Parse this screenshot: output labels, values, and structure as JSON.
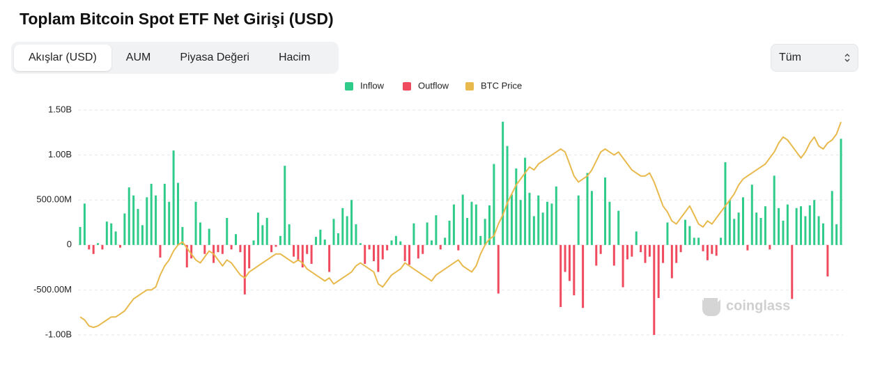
{
  "ui": {
    "title": "Toplam Bitcoin Spot ETF Net Girişi (USD)",
    "tabs": [
      "Akışlar (USD)",
      "AUM",
      "Piyasa Değeri",
      "Hacim"
    ],
    "select": "Tüm",
    "watermark": "coinglass"
  },
  "chart_data": {
    "type": "bar",
    "ylim": [
      -1000000000,
      1500000000
    ],
    "yticks": [
      {
        "value": -1000000000,
        "label": "-1.00B"
      },
      {
        "value": -500000000,
        "label": "-500.00M"
      },
      0,
      {
        "value": 500000000,
        "label": "500.00M"
      },
      {
        "value": 1000000000,
        "label": "1.00B"
      },
      {
        "value": 1500000000,
        "label": "1.50B"
      }
    ],
    "y2lim": [
      35000,
      110000
    ],
    "grid": true,
    "legend": "top",
    "series": [
      {
        "name": "Inflow",
        "color": "#2fcb8a",
        "values": [
          200000000.0,
          460000000.0,
          null,
          null,
          20000000.0,
          null,
          260000000.0,
          240000000.0,
          150000000.0,
          null,
          350000000.0,
          640000000.0,
          550000000.0,
          400000000.0,
          220000000.0,
          530000000.0,
          680000000.0,
          550000000.0,
          null,
          680000000.0,
          480000000.0,
          1050000000.0,
          690000000.0,
          200000000.0,
          null,
          null,
          480000000.0,
          250000000.0,
          null,
          180000000.0,
          null,
          null,
          null,
          300000000.0,
          null,
          120000000.0,
          null,
          null,
          null,
          50000000.0,
          360000000.0,
          220000000.0,
          300000000.0,
          null,
          null,
          100000000.0,
          880000000.0,
          230000000.0,
          null,
          null,
          null,
          null,
          null,
          90000000.0,
          170000000.0,
          60000000.0,
          null,
          290000000.0,
          130000000.0,
          410000000.0,
          320000000.0,
          500000000.0,
          230000000.0,
          20000000.0,
          null,
          null,
          null,
          null,
          null,
          null,
          50000000.0,
          100000000.0,
          40000000.0,
          null,
          null,
          240000000.0,
          null,
          null,
          250000000.0,
          50000000.0,
          330000000.0,
          null,
          80000000.0,
          270000000.0,
          450000000.0,
          null,
          560000000.0,
          300000000.0,
          480000000.0,
          450000000.0,
          100000000.0,
          290000000.0,
          440000000.0,
          900000000.0,
          null,
          1370000000.0,
          1100000000.0,
          560000000.0,
          850000000.0,
          500000000.0,
          970000000.0,
          580000000.0,
          320000000.0,
          550000000.0,
          360000000.0,
          480000000.0,
          460000000.0,
          650000000.0,
          null,
          null,
          null,
          null,
          550000000.0,
          null,
          800000000.0,
          600000000.0,
          null,
          null,
          750000000.0,
          480000000.0,
          null,
          380000000.0,
          null,
          null,
          null,
          150000000.0,
          null,
          null,
          null,
          null,
          null,
          null,
          250000000.0,
          null,
          null,
          null,
          280000000.0,
          210000000.0,
          80000000.0,
          80000000.0,
          null,
          null,
          null,
          null,
          80000000.0,
          920000000.0,
          500000000.0,
          290000000.0,
          360000000.0,
          530000000.0,
          null,
          670000000.0,
          360000000.0,
          300000000.0,
          430000000.0,
          null,
          770000000.0,
          410000000.0,
          270000000.0,
          450000000.0,
          null,
          410000000.0,
          430000000.0,
          320000000.0,
          440000000.0,
          500000000.0,
          320000000.0,
          240000000.0,
          null,
          600000000.0,
          230000000.0,
          1180000000.0
        ]
      },
      {
        "name": "Outflow",
        "color": "#f04a5e",
        "values": [
          null,
          null,
          -50000000.0,
          -100000000.0,
          null,
          -50000000.0,
          null,
          null,
          null,
          -30000000.0,
          null,
          null,
          null,
          null,
          null,
          null,
          null,
          null,
          -140000000.0,
          null,
          null,
          null,
          null,
          null,
          -250000000.0,
          -150000000.0,
          null,
          null,
          -100000000.0,
          null,
          -200000000.0,
          -80000000.0,
          -100000000.0,
          null,
          -50000000.0,
          null,
          -80000000.0,
          -550000000.0,
          -260000000.0,
          null,
          null,
          null,
          null,
          -80000000.0,
          -20000000.0,
          null,
          null,
          null,
          -130000000.0,
          -180000000.0,
          -250000000.0,
          -100000000.0,
          -210000000.0,
          null,
          null,
          null,
          -300000000.0,
          null,
          null,
          null,
          null,
          null,
          null,
          null,
          -210000000.0,
          -50000000.0,
          -180000000.0,
          -300000000.0,
          -160000000.0,
          -60000000.0,
          null,
          null,
          null,
          -180000000.0,
          -220000000.0,
          null,
          -150000000.0,
          -100000000.0,
          null,
          null,
          null,
          -50000000.0,
          null,
          null,
          null,
          -60000000.0,
          null,
          null,
          null,
          null,
          null,
          null,
          null,
          null,
          -540000000.0,
          null,
          null,
          null,
          null,
          null,
          null,
          null,
          null,
          null,
          null,
          null,
          null,
          null,
          -690000000.0,
          -300000000.0,
          -400000000.0,
          -560000000.0,
          null,
          -700000000.0,
          null,
          null,
          -230000000.0,
          -100000000.0,
          null,
          null,
          -230000000.0,
          null,
          -470000000.0,
          -160000000.0,
          -130000000.0,
          null,
          -80000000.0,
          -200000000.0,
          -130000000.0,
          -1000000000.0,
          -590000000.0,
          -200000000.0,
          null,
          -370000000.0,
          -200000000.0,
          -80000000.0,
          null,
          null,
          null,
          null,
          -70000000.0,
          -170000000.0,
          -100000000.0,
          -120000000.0,
          null,
          null,
          null,
          null,
          null,
          null,
          -60000000.0,
          null,
          null,
          null,
          null,
          -50000000.0,
          null,
          null,
          null,
          null,
          -600000000.0,
          null,
          null,
          null,
          null,
          null,
          null,
          null,
          -350000000.0,
          null,
          null,
          null
        ]
      },
      {
        "name": "BTC Price",
        "color": "#e8b94c",
        "type": "line",
        "axis": "y2",
        "values": [
          41000,
          40000,
          38000,
          37500,
          38000,
          39000,
          40000,
          41000,
          41000,
          42000,
          43000,
          45000,
          47000,
          48000,
          49000,
          50000,
          50000,
          51000,
          55000,
          58000,
          60000,
          63000,
          65000,
          66000,
          64000,
          62000,
          60000,
          59000,
          61000,
          63000,
          62000,
          60000,
          58000,
          60000,
          59000,
          57000,
          55000,
          54000,
          56000,
          57000,
          58000,
          59000,
          60000,
          61000,
          62000,
          62000,
          61000,
          60000,
          59000,
          60000,
          59000,
          57000,
          56000,
          55000,
          54000,
          53000,
          54000,
          52000,
          53000,
          54000,
          55000,
          56000,
          58000,
          59000,
          58000,
          57000,
          56000,
          52000,
          51000,
          53000,
          55000,
          56000,
          57000,
          59000,
          58000,
          57000,
          56000,
          55000,
          54000,
          53000,
          55000,
          56000,
          57000,
          58000,
          59000,
          60000,
          58000,
          57000,
          56000,
          58000,
          62000,
          65000,
          67000,
          68000,
          72000,
          75000,
          79000,
          82000,
          85000,
          87000,
          89000,
          91000,
          90000,
          92000,
          93000,
          94000,
          95000,
          96000,
          97000,
          96000,
          92000,
          88000,
          86000,
          87000,
          88000,
          90000,
          93000,
          96000,
          97000,
          96000,
          95000,
          96000,
          94000,
          92000,
          90000,
          89000,
          88000,
          88000,
          89000,
          86000,
          82000,
          78000,
          76000,
          73000,
          72000,
          74000,
          76000,
          78000,
          75000,
          72000,
          71000,
          73000,
          72000,
          74000,
          76000,
          78000,
          80000,
          82000,
          85000,
          87000,
          88000,
          89000,
          90000,
          91000,
          92000,
          94000,
          96000,
          99000,
          101000,
          100000,
          98000,
          96000,
          94000,
          96000,
          99000,
          101000,
          98000,
          97000,
          99000,
          100000,
          102000,
          106000
        ]
      }
    ]
  }
}
